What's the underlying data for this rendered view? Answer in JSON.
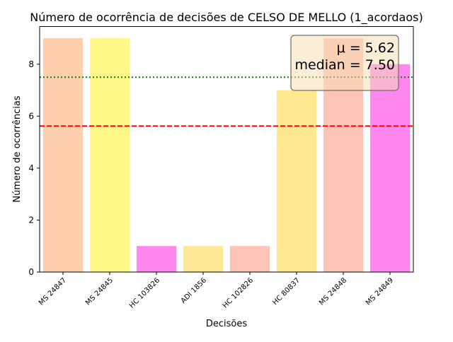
{
  "chart_data": {
    "type": "bar",
    "title": "Número de ocorrência de decisões de CELSO DE MELLO (1_acordaos)",
    "xlabel": "Decisões",
    "ylabel": "Número de ocorrências",
    "categories": [
      "MS 24847",
      "MS 24845",
      "HC 103826",
      "ADI 1856",
      "HC 102826",
      "HC 80837",
      "MS 24848",
      "MS 24849"
    ],
    "values": [
      9,
      9,
      1,
      1,
      1,
      7,
      9,
      8
    ],
    "colors": [
      "#ffcfad",
      "#fff888",
      "#ff88f0",
      "#ffe894",
      "#ffc4b8",
      "#ffe890",
      "#ffc4b8",
      "#ff88f0"
    ],
    "ylim": [
      0,
      9.45
    ],
    "yticks": [
      0,
      2,
      4,
      6,
      8
    ],
    "grid": false,
    "reference_lines": [
      {
        "label": "mean",
        "value": 5.62,
        "color": "#ff0000",
        "style": "dashed"
      },
      {
        "label": "median",
        "value": 7.5,
        "color": "#008000",
        "style": "dotted"
      }
    ],
    "annotation": {
      "mean_text": "μ = 5.62",
      "median_text": "median = 7.50",
      "placement": "top-right",
      "box_color": "#f5deb3"
    }
  }
}
